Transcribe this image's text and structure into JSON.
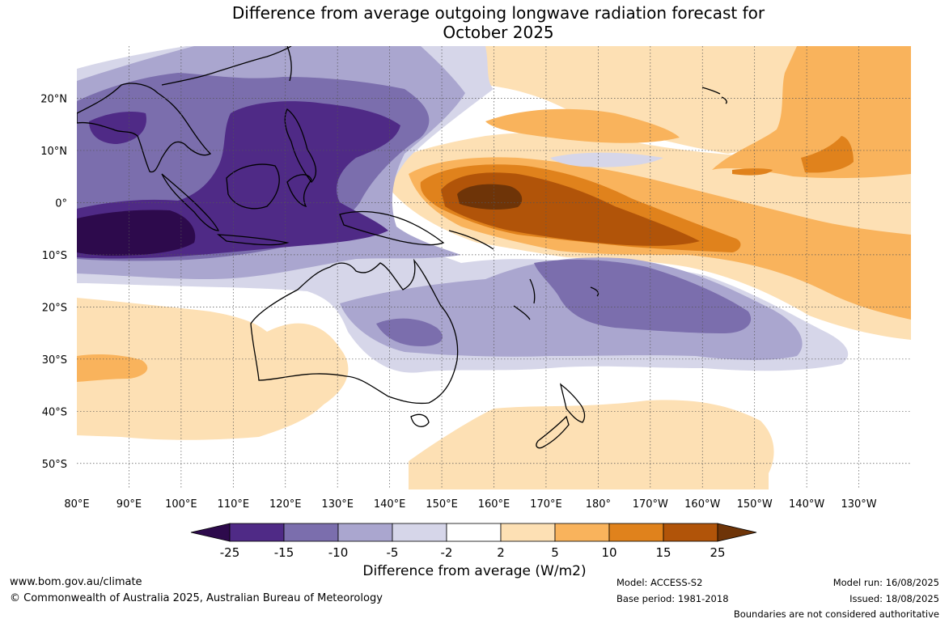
{
  "title": {
    "line1": "Difference from average outgoing longwave radiation forecast for",
    "line2": "October 2025"
  },
  "map": {
    "lat_labels": [
      "20°N",
      "10°N",
      "0°",
      "10°S",
      "20°S",
      "30°S",
      "40°S",
      "50°S"
    ],
    "lon_labels": [
      "80°E",
      "90°E",
      "100°E",
      "110°E",
      "120°E",
      "130°E",
      "140°E",
      "150°E",
      "160°E",
      "170°E",
      "180°",
      "170°W",
      "160°W",
      "150°W",
      "140°W",
      "130°W"
    ],
    "lat_range": [
      30,
      -55
    ],
    "lon_range": [
      80,
      240
    ],
    "colors": {
      "neg_25_plus": "#2d0a4c",
      "neg_15_25": "#4f2a86",
      "neg_10_15": "#7b6ead",
      "neg_5_10": "#aaa6cf",
      "neg_2_5": "#d6d6e9",
      "neutral": "#ffffff",
      "pos_2_5": "#fde0b4",
      "pos_5_10": "#f9b35c",
      "pos_10_15": "#e0821c",
      "pos_15_25": "#b15409",
      "pos_25_plus": "#6e3408"
    }
  },
  "colorbar": {
    "ticks": [
      "-25",
      "-15",
      "-10",
      "-5",
      "-2",
      "2",
      "5",
      "10",
      "15",
      "25"
    ],
    "colors": [
      "#2d0a4c",
      "#4f2a86",
      "#7b6ead",
      "#aaa6cf",
      "#d6d6e9",
      "#ffffff",
      "#fde0b4",
      "#f9b35c",
      "#e0821c",
      "#b15409",
      "#6e3408"
    ],
    "title": "Difference from average (W/m2)"
  },
  "footer": {
    "website": "www.bom.gov.au/climate",
    "copyright": "© Commonwealth of Australia 2025, Australian Bureau of Meteorology",
    "model": "Model: ACCESS-S2",
    "base_period": "Base period: 1981-2018",
    "model_run": "Model run: 16/08/2025",
    "issued": "Issued: 18/08/2025",
    "disclaimer": "Boundaries are not considered authoritative"
  }
}
